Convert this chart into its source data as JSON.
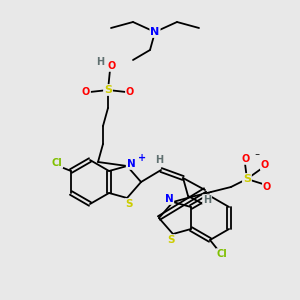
{
  "bg_color": "#e8e8e8",
  "atom_colors": {
    "N": "#0000ff",
    "S": "#cccc00",
    "O": "#ff0000",
    "Cl": "#7fbf00",
    "H": "#607070",
    "C": "#000000"
  },
  "line_color": "#000000",
  "bond_width": 1.3
}
